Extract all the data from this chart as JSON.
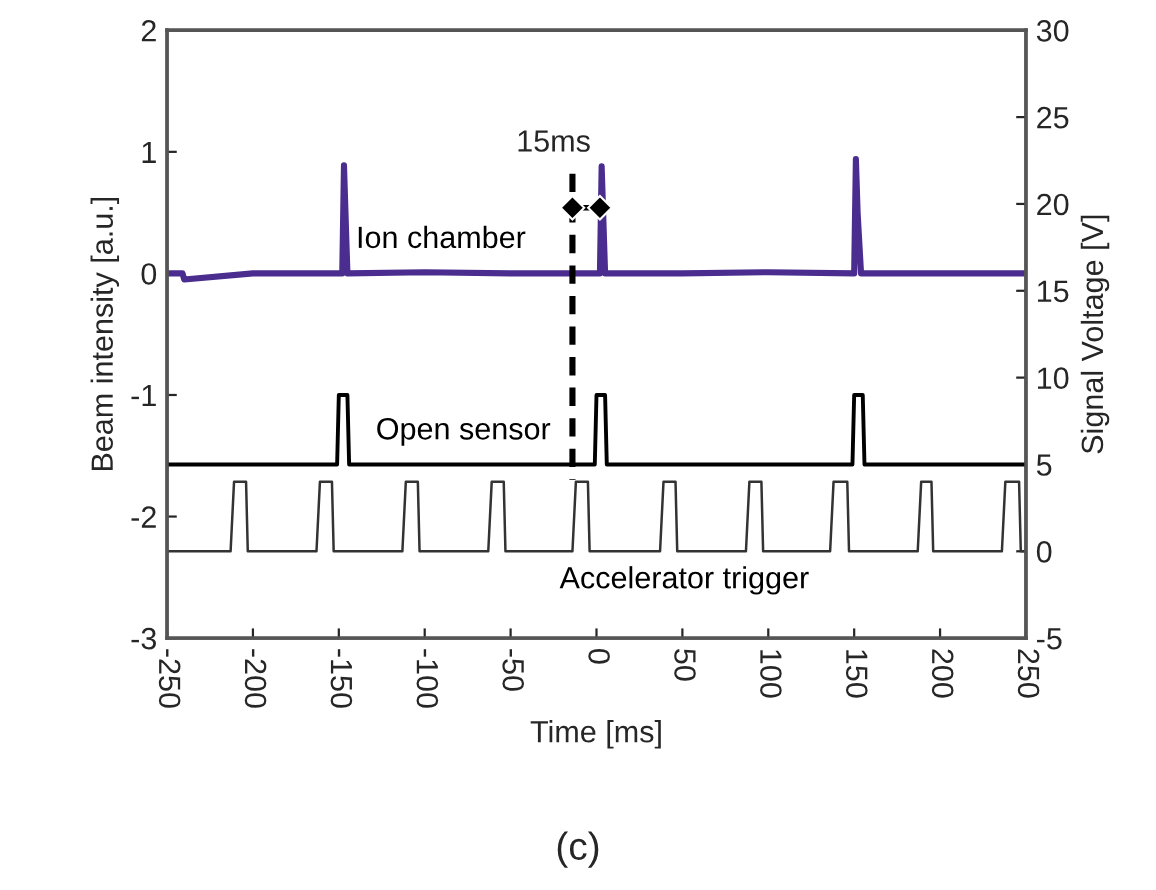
{
  "chart_data": {
    "type": "line",
    "xlabel": "Time [ms]",
    "ylabel": "Beam intensity [a.u.]",
    "y2label": "Signal Voltage [V]",
    "xlim": [
      -250,
      250
    ],
    "xticks": [
      -250,
      -200,
      -150,
      -100,
      -50,
      0,
      50,
      100,
      150,
      200,
      250
    ],
    "ylim": [
      -3,
      2
    ],
    "yticks": [
      -3,
      -2,
      -1,
      0,
      1,
      2
    ],
    "y2lim": [
      -5,
      30
    ],
    "y2ticks": [
      -5,
      0,
      5,
      10,
      15,
      20,
      25,
      30
    ],
    "grid": false,
    "annotations": [
      "15ms",
      "(c)"
    ],
    "series": [
      {
        "name": "Ion chamber",
        "color": "#4a2d8f",
        "axis": "y",
        "x": [
          -250,
          -241,
          -240,
          -200,
          -148,
          -147,
          -145,
          -100,
          -50,
          -14,
          2,
          3,
          5,
          50,
          100,
          150,
          151,
          152,
          154,
          200,
          250
        ],
        "values": [
          0,
          0,
          -0.05,
          0,
          0,
          0.89,
          0,
          0.01,
          0,
          0,
          0,
          0.88,
          0,
          0,
          0.01,
          0,
          0.94,
          0.5,
          0,
          0,
          0
        ]
      },
      {
        "name": "Open sensor",
        "color": "#000000",
        "axis": "y2",
        "x": [
          -250,
          -151,
          -150,
          -145,
          -144,
          -1,
          0,
          5,
          6,
          149,
          150,
          155,
          156,
          250
        ],
        "values": [
          5,
          5,
          9,
          9,
          5,
          5,
          9,
          9,
          5,
          5,
          9,
          9,
          5,
          5
        ]
      },
      {
        "name": "Accelerator trigger",
        "color": "#333333",
        "axis": "y2",
        "x": [
          -250,
          -213,
          -211,
          -204,
          -203,
          -163,
          -161,
          -154,
          -153,
          -113,
          -111,
          -104,
          -103,
          -63,
          -61,
          -54,
          -53,
          -14,
          -12,
          -5,
          -4,
          37,
          39,
          46,
          47,
          87,
          89,
          96,
          97,
          136,
          138,
          146,
          147,
          187,
          189,
          195,
          196,
          236,
          238,
          246,
          247,
          250
        ],
        "values": [
          0,
          0,
          4,
          4,
          0,
          0,
          4,
          4,
          0,
          0,
          4,
          4,
          0,
          0,
          4,
          4,
          0,
          0,
          4,
          4,
          0,
          0,
          4,
          4,
          0,
          0,
          4,
          4,
          0,
          0,
          4,
          4,
          0,
          0,
          4,
          4,
          0,
          0,
          4,
          4,
          0,
          0
        ]
      },
      {
        "color": "#000000",
        "axis": "y",
        "line_style": "dashed",
        "x": [
          -14,
          -14
        ],
        "values": [
          0.82,
          -1.7
        ]
      },
      {
        "color": "#000000",
        "axis": "y",
        "marker": "diamond",
        "x": [
          -14,
          2
        ],
        "values": [
          0.54,
          0.54
        ]
      }
    ]
  }
}
